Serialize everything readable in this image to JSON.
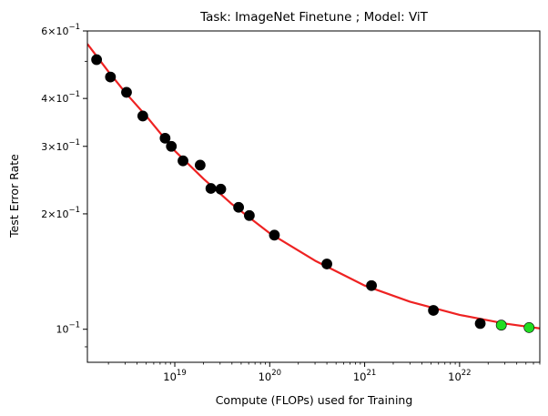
{
  "chart_data": {
    "type": "scatter",
    "title": "Task: ImageNet Finetune ; Model: ViT",
    "xlabel": "Compute (FLOPs) used for Training",
    "ylabel": "Test Error Rate",
    "xscale": "log",
    "yscale": "log",
    "xlim": [
      1.2e+18,
      7e+22
    ],
    "ylim": [
      0.082,
      0.6
    ],
    "grid": false,
    "legend": "none",
    "x_ticks": [
      {
        "value": 1e+19,
        "base": "10",
        "exp": "19"
      },
      {
        "value": 1e+20,
        "base": "10",
        "exp": "20"
      },
      {
        "value": 1e+21,
        "base": "10",
        "exp": "21"
      },
      {
        "value": 1e+22,
        "base": "10",
        "exp": "22"
      }
    ],
    "y_ticks": [
      {
        "value": 0.6,
        "mant": "6",
        "exp": "−1"
      },
      {
        "value": 0.4,
        "mant": "4",
        "exp": "−1"
      },
      {
        "value": 0.3,
        "mant": "3",
        "exp": "−1"
      },
      {
        "value": 0.2,
        "mant": "2",
        "exp": "−1"
      },
      {
        "value": 0.1,
        "mant": "",
        "exp": "−1"
      }
    ],
    "y_minor_ticks": [
      0.5,
      0.09
    ],
    "series": [
      {
        "color": "#000000",
        "points": [
          {
            "x": 1.5e+18,
            "y": 0.505
          },
          {
            "x": 2.1e+18,
            "y": 0.455
          },
          {
            "x": 3.1e+18,
            "y": 0.415
          },
          {
            "x": 4.6e+18,
            "y": 0.36
          },
          {
            "x": 7.9e+18,
            "y": 0.315
          },
          {
            "x": 9.2e+18,
            "y": 0.3
          },
          {
            "x": 1.22e+19,
            "y": 0.275
          },
          {
            "x": 1.85e+19,
            "y": 0.268
          },
          {
            "x": 2.4e+19,
            "y": 0.233
          },
          {
            "x": 3.05e+19,
            "y": 0.232
          },
          {
            "x": 4.7e+19,
            "y": 0.208
          },
          {
            "x": 6.1e+19,
            "y": 0.198
          },
          {
            "x": 1.12e+20,
            "y": 0.176
          },
          {
            "x": 4e+20,
            "y": 0.148
          },
          {
            "x": 1.18e+21,
            "y": 0.13
          },
          {
            "x": 5.3e+21,
            "y": 0.112
          },
          {
            "x": 1.65e+22,
            "y": 0.1035
          }
        ]
      },
      {
        "color": "#22dd22",
        "points": [
          {
            "x": 2.75e+22,
            "y": 0.1025
          },
          {
            "x": 5.4e+22,
            "y": 0.101
          }
        ]
      }
    ],
    "fit_curve": {
      "color": "#ee2222",
      "points": [
        {
          "x": 1.2e+18,
          "y": 0.555
        },
        {
          "x": 2e+18,
          "y": 0.47
        },
        {
          "x": 3e+18,
          "y": 0.415
        },
        {
          "x": 5e+18,
          "y": 0.36
        },
        {
          "x": 1e+19,
          "y": 0.292
        },
        {
          "x": 2e+19,
          "y": 0.247
        },
        {
          "x": 4e+19,
          "y": 0.212
        },
        {
          "x": 1e+20,
          "y": 0.178
        },
        {
          "x": 3e+20,
          "y": 0.151
        },
        {
          "x": 1e+21,
          "y": 0.13
        },
        {
          "x": 3e+21,
          "y": 0.118
        },
        {
          "x": 1e+22,
          "y": 0.109
        },
        {
          "x": 3e+22,
          "y": 0.1035
        },
        {
          "x": 7e+22,
          "y": 0.1005
        }
      ]
    }
  }
}
